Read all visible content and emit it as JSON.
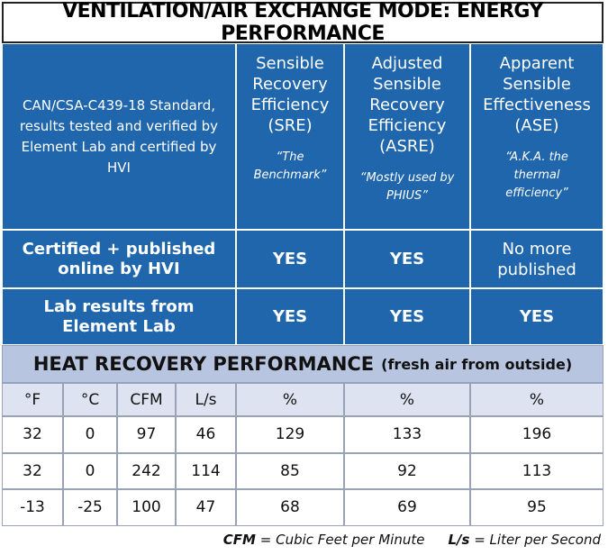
{
  "title": "VENTILATION/AIR EXCHANGE MODE: ENERGY PERFORMANCE",
  "header": {
    "description": "CAN/CSA-C439-18 Standard, results tested and verified by Element Lab and certified by HVI",
    "columns": [
      {
        "name": "Sensible Recovery Efficiency (SRE)",
        "note": "“The Benchmark”"
      },
      {
        "name": "Adjusted Sensible Recovery Efficiency (ASRE)",
        "note": "“Mostly used by PHIUS”"
      },
      {
        "name": "Apparent Sensible Effectiveness (ASE)",
        "note": "“A.K.A. the thermal efficiency”"
      }
    ]
  },
  "rows": [
    {
      "label": "Certified + published online by HVI",
      "values": [
        "YES",
        "YES",
        "No more published"
      ]
    },
    {
      "label": "Lab results from Element Lab",
      "values": [
        "YES",
        "YES",
        "YES"
      ]
    }
  ],
  "section_title": "HEAT RECOVERY PERFORMANCE",
  "section_subtitle": "(fresh air from outside)",
  "units": [
    "°F",
    "°C",
    "CFM",
    "L/s",
    "%",
    "%",
    "%"
  ],
  "data": [
    [
      32,
      0,
      97,
      46,
      129,
      133,
      196
    ],
    [
      32,
      0,
      242,
      114,
      85,
      92,
      113
    ],
    [
      -13,
      -25,
      100,
      47,
      68,
      69,
      95
    ]
  ],
  "footnote": [
    {
      "term": "CFM",
      "definition": "= Cubic Feet per Minute"
    },
    {
      "term": "L/s",
      "definition": "= Liter per Second"
    }
  ]
}
